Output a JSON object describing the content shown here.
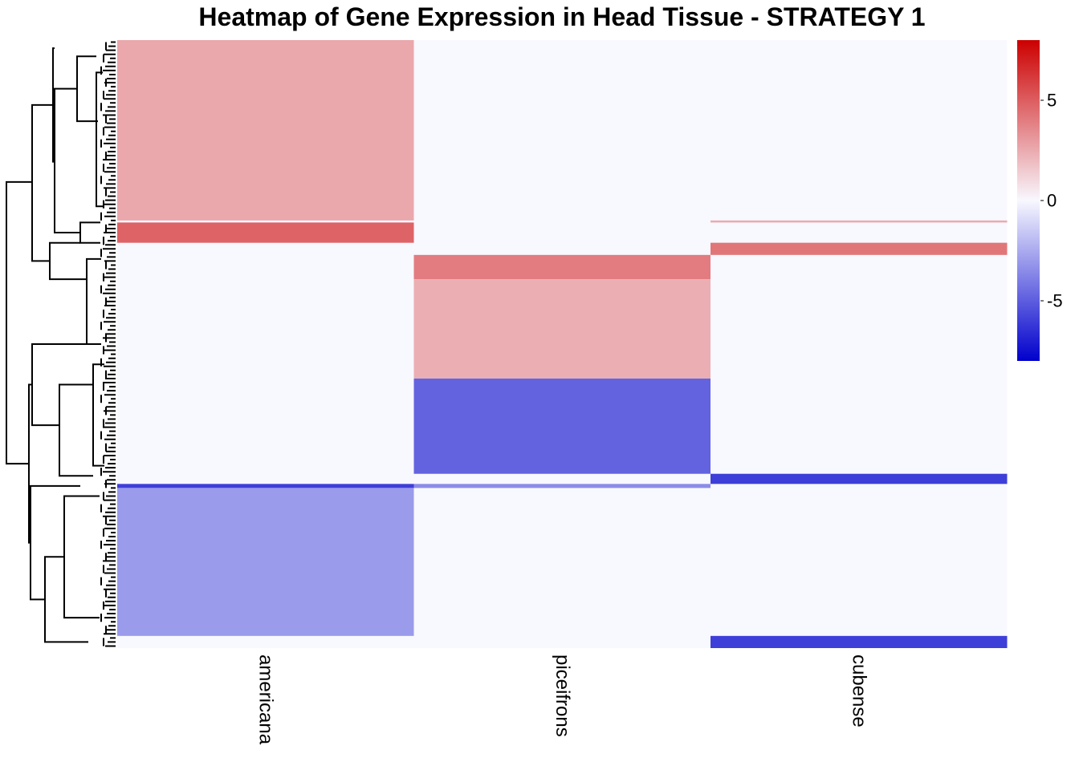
{
  "chart_data": {
    "type": "heatmap",
    "title": "Heatmap of Gene Expression in Head Tissue - STRATEGY 1",
    "columns": [
      "americana",
      "piceifrons",
      "cubense"
    ],
    "row_dendrogram": true,
    "n_rows": 300,
    "colorscale": {
      "low_color": "#0000CC",
      "mid_color": "#F8F8FF",
      "high_color": "#CC0000",
      "domain": [
        -8,
        8
      ],
      "ticks": [
        5,
        0,
        -5
      ],
      "tick_labels": [
        "5",
        "0",
        "-5"
      ]
    },
    "blocks": [
      {
        "rows": [
          0,
          89
        ],
        "values": [
          2.6,
          0,
          0
        ]
      },
      {
        "rows": [
          89,
          90
        ],
        "values": [
          0,
          0,
          2.5
        ]
      },
      {
        "rows": [
          90,
          100
        ],
        "values": [
          4.8,
          0,
          0
        ]
      },
      {
        "rows": [
          100,
          106
        ],
        "values": [
          0,
          0,
          4.2
        ]
      },
      {
        "rows": [
          106,
          118
        ],
        "values": [
          0,
          4.0,
          0
        ]
      },
      {
        "rows": [
          118,
          167
        ],
        "values": [
          0,
          2.4,
          0
        ]
      },
      {
        "rows": [
          167,
          214
        ],
        "values": [
          0,
          -4.8,
          0
        ]
      },
      {
        "rows": [
          214,
          219
        ],
        "values": [
          0,
          0,
          -6.0
        ]
      },
      {
        "rows": [
          219,
          221
        ],
        "values": [
          -6.0,
          -3.5,
          0
        ]
      },
      {
        "rows": [
          221,
          294
        ],
        "values": [
          -3.0,
          0,
          0
        ]
      },
      {
        "rows": [
          294,
          300
        ],
        "values": [
          0,
          0,
          -6.0
        ]
      }
    ]
  }
}
